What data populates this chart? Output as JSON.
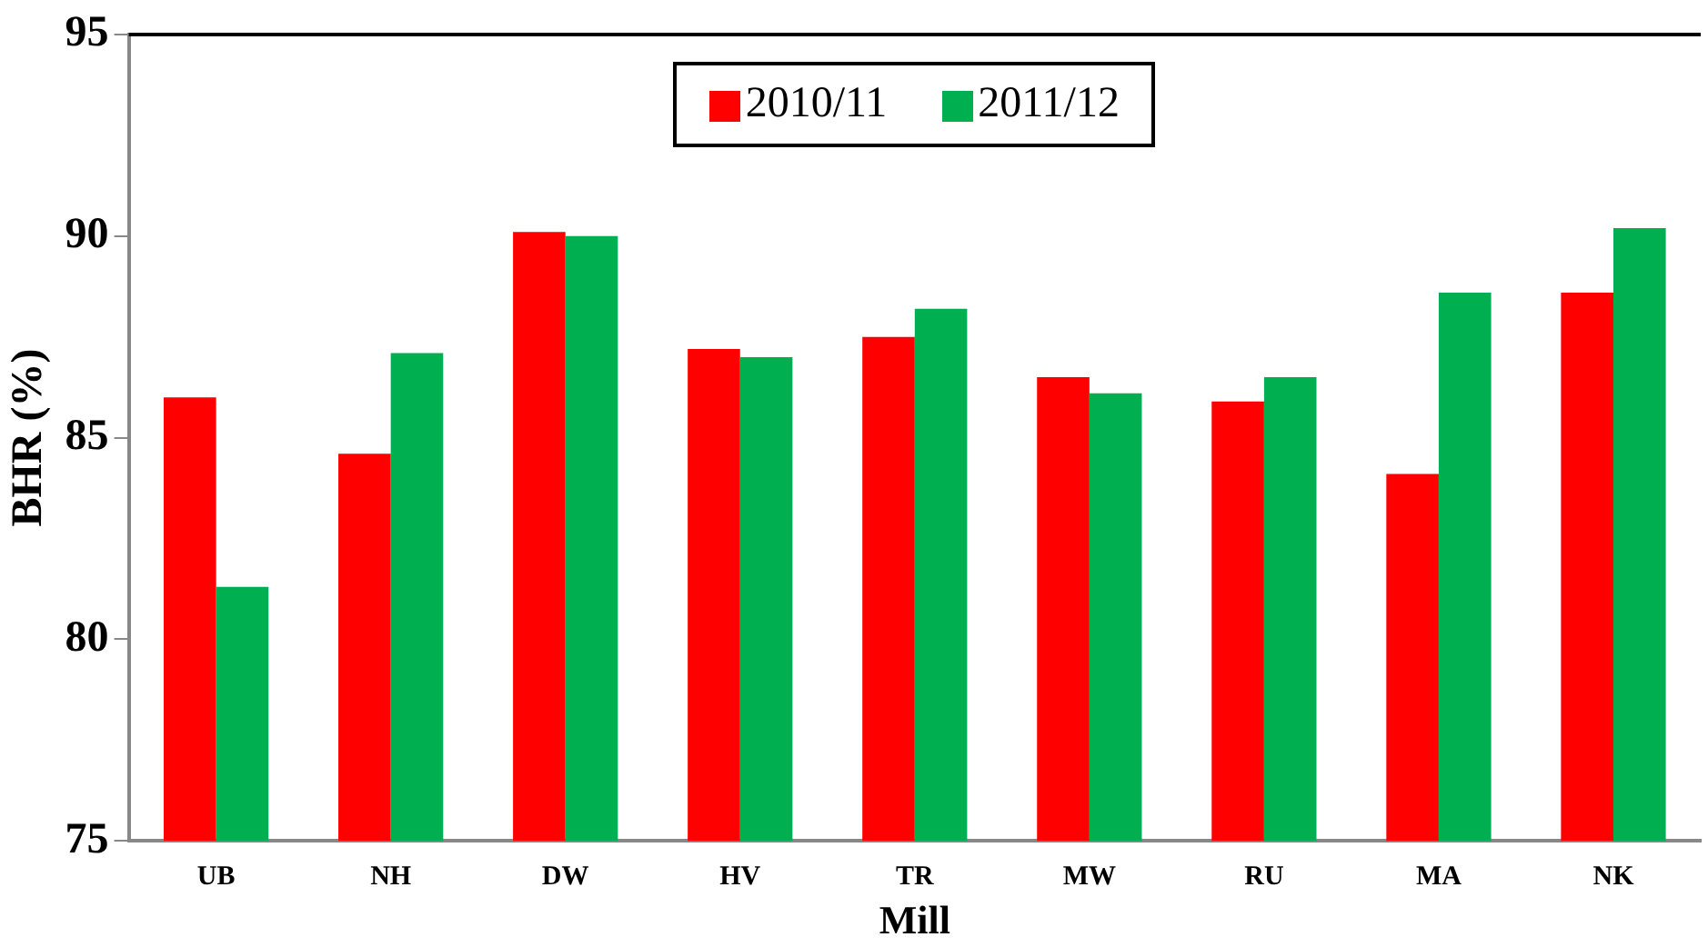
{
  "chart_data": {
    "type": "bar",
    "xlabel": "Mill",
    "ylabel": "BHR (%)",
    "categories": [
      "UB",
      "NH",
      "DW",
      "HV",
      "TR",
      "MW",
      "RU",
      "MA",
      "NK"
    ],
    "series": [
      {
        "name": "2010/11",
        "color": "#ff0000",
        "values": [
          86.0,
          84.6,
          90.1,
          87.2,
          87.5,
          86.5,
          85.9,
          84.1,
          88.6
        ]
      },
      {
        "name": "2011/12",
        "color": "#00b050",
        "values": [
          81.3,
          87.1,
          90.0,
          87.0,
          88.2,
          86.1,
          86.5,
          88.6,
          90.2
        ]
      }
    ],
    "ylim": [
      75,
      95
    ],
    "yticks": [
      75,
      80,
      85,
      90,
      95
    ],
    "grid": false,
    "legend": "top"
  }
}
